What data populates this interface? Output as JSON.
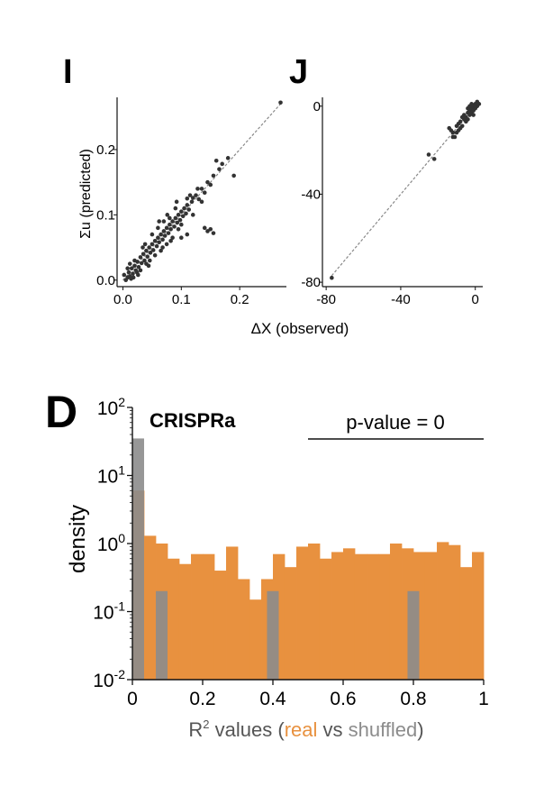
{
  "figure": {
    "panel_i_label": "I",
    "panel_j_label": "J",
    "panel_d_label": "D",
    "shared_xlabel": "ΔX (observed)",
    "panel_d_title": "CRISPRa",
    "pvalue_text": "p-value = 0",
    "xlabel_prefix": "R",
    "xlabel_sup": "2",
    "xlabel_mid": " values (",
    "xlabel_real": "real",
    "xlabel_vs": " vs ",
    "xlabel_shuffled": "shuffled",
    "xlabel_end": ")"
  },
  "colors": {
    "real": "#e8913f",
    "shuffled": "#8c8c8c",
    "points": "#333333",
    "diagonal": "#888888"
  },
  "chart_data": [
    {
      "panel": "I",
      "type": "scatter",
      "ylabel": "Σu (predicted)",
      "xlim": [
        -0.01,
        0.28
      ],
      "ylim": [
        -0.01,
        0.28
      ],
      "xticks": [
        0.0,
        0.1,
        0.2
      ],
      "xtick_labels": [
        "0.0",
        "0.1",
        "0.2"
      ],
      "yticks": [
        0.0,
        0.1,
        0.2
      ],
      "ytick_labels": [
        "0.0",
        "0.1",
        "0.2"
      ],
      "diagonal": [
        [
          0,
          0
        ],
        [
          0.27,
          0.27
        ]
      ],
      "points": [
        [
          0.005,
          0.0
        ],
        [
          0.008,
          0.004
        ],
        [
          0.01,
          0.012
        ],
        [
          0.012,
          0.006
        ],
        [
          0.015,
          0.018
        ],
        [
          0.017,
          0.01
        ],
        [
          0.02,
          0.022
        ],
        [
          0.022,
          0.015
        ],
        [
          0.025,
          0.028
        ],
        [
          0.027,
          0.02
        ],
        [
          0.03,
          0.035
        ],
        [
          0.032,
          0.026
        ],
        [
          0.035,
          0.04
        ],
        [
          0.037,
          0.03
        ],
        [
          0.04,
          0.045
        ],
        [
          0.042,
          0.036
        ],
        [
          0.045,
          0.05
        ],
        [
          0.047,
          0.042
        ],
        [
          0.05,
          0.055
        ],
        [
          0.052,
          0.046
        ],
        [
          0.055,
          0.06
        ],
        [
          0.058,
          0.052
        ],
        [
          0.06,
          0.065
        ],
        [
          0.062,
          0.058
        ],
        [
          0.065,
          0.07
        ],
        [
          0.068,
          0.062
        ],
        [
          0.07,
          0.075
        ],
        [
          0.072,
          0.068
        ],
        [
          0.075,
          0.08
        ],
        [
          0.078,
          0.072
        ],
        [
          0.08,
          0.085
        ],
        [
          0.082,
          0.078
        ],
        [
          0.085,
          0.09
        ],
        [
          0.088,
          0.082
        ],
        [
          0.09,
          0.095
        ],
        [
          0.093,
          0.088
        ],
        [
          0.095,
          0.1
        ],
        [
          0.098,
          0.092
        ],
        [
          0.1,
          0.105
        ],
        [
          0.103,
          0.098
        ],
        [
          0.105,
          0.11
        ],
        [
          0.108,
          0.102
        ],
        [
          0.11,
          0.115
        ],
        [
          0.113,
          0.108
        ],
        [
          0.118,
          0.12
        ],
        [
          0.12,
          0.126
        ],
        [
          0.125,
          0.13
        ],
        [
          0.13,
          0.124
        ],
        [
          0.135,
          0.14
        ],
        [
          0.14,
          0.134
        ],
        [
          0.145,
          0.15
        ],
        [
          0.15,
          0.146
        ],
        [
          0.155,
          0.16
        ],
        [
          0.16,
          0.183
        ],
        [
          0.165,
          0.17
        ],
        [
          0.17,
          0.178
        ],
        [
          0.18,
          0.187
        ],
        [
          0.19,
          0.16
        ],
        [
          0.002,
          0.008
        ],
        [
          0.012,
          0.025
        ],
        [
          0.018,
          0.004
        ],
        [
          0.024,
          0.012
        ],
        [
          0.03,
          0.015
        ],
        [
          0.034,
          0.05
        ],
        [
          0.04,
          0.025
        ],
        [
          0.046,
          0.03
        ],
        [
          0.05,
          0.07
        ],
        [
          0.055,
          0.038
        ],
        [
          0.06,
          0.08
        ],
        [
          0.065,
          0.045
        ],
        [
          0.07,
          0.09
        ],
        [
          0.075,
          0.055
        ],
        [
          0.08,
          0.095
        ],
        [
          0.085,
          0.065
        ],
        [
          0.09,
          0.11
        ],
        [
          0.095,
          0.078
        ],
        [
          0.1,
          0.085
        ],
        [
          0.11,
          0.125
        ],
        [
          0.12,
          0.1
        ],
        [
          0.135,
          0.12
        ],
        [
          0.14,
          0.08
        ],
        [
          0.145,
          0.075
        ],
        [
          0.15,
          0.078
        ],
        [
          0.155,
          0.072
        ],
        [
          0.11,
          0.07
        ],
        [
          0.1,
          0.065
        ],
        [
          0.008,
          0.018
        ],
        [
          0.014,
          0.002
        ],
        [
          0.02,
          0.03
        ],
        [
          0.026,
          0.008
        ],
        [
          0.038,
          0.055
        ],
        [
          0.044,
          0.022
        ],
        [
          0.062,
          0.09
        ],
        [
          0.068,
          0.05
        ],
        [
          0.076,
          0.1
        ],
        [
          0.082,
          0.06
        ],
        [
          0.092,
          0.12
        ],
        [
          0.115,
          0.13
        ],
        [
          0.128,
          0.14
        ],
        [
          0.27,
          0.272
        ]
      ]
    },
    {
      "panel": "J",
      "type": "scatter",
      "xlim": [
        -82,
        4
      ],
      "ylim": [
        -82,
        4
      ],
      "xticks": [
        -80,
        -40,
        0
      ],
      "xtick_labels": [
        "-80",
        "-40",
        "0"
      ],
      "yticks": [
        0,
        -40,
        -80
      ],
      "ytick_labels": [
        "0",
        "-40",
        "-80"
      ],
      "diagonal": [
        [
          -77,
          -77
        ],
        [
          2,
          2
        ]
      ],
      "points": [
        [
          -77,
          -78
        ],
        [
          -25,
          -22
        ],
        [
          -22,
          -24
        ],
        [
          -12,
          -12
        ],
        [
          -14,
          -10
        ],
        [
          -11,
          -14
        ],
        [
          -10,
          -9
        ],
        [
          -9,
          -11
        ],
        [
          -8,
          -7
        ],
        [
          -7,
          -9
        ],
        [
          -6,
          -6
        ],
        [
          -6,
          -4
        ],
        [
          -5,
          -7
        ],
        [
          -5,
          -5
        ],
        [
          -4,
          -3
        ],
        [
          -4,
          -6
        ],
        [
          -3,
          -4
        ],
        [
          -3,
          -2
        ],
        [
          -2,
          -3
        ],
        [
          -2,
          -1
        ],
        [
          -1,
          -2
        ],
        [
          -1,
          0
        ],
        [
          0,
          -1
        ],
        [
          0,
          1
        ],
        [
          1,
          0
        ],
        [
          1,
          2
        ],
        [
          2,
          1
        ],
        [
          -3,
          0
        ],
        [
          -2,
          1
        ],
        [
          -1,
          -4
        ],
        [
          -7,
          -5
        ],
        [
          -8,
          -10
        ],
        [
          -9,
          -8
        ],
        [
          -10,
          -12
        ],
        [
          -12,
          -14
        ],
        [
          -13,
          -11
        ],
        [
          -4,
          -1
        ],
        [
          0,
          0
        ]
      ]
    },
    {
      "panel": "D",
      "type": "bar",
      "subtitle": "histogram (log-scale density)",
      "ylabel": "density",
      "yscale": "log",
      "ylim": [
        0.01,
        100
      ],
      "xlim": [
        0,
        1
      ],
      "xticks": [
        0,
        0.2,
        0.4,
        0.6,
        0.8,
        1
      ],
      "xtick_labels": [
        "0",
        "0.2",
        "0.4",
        "0.6",
        "0.8",
        "1"
      ],
      "ytick_labels": [
        {
          "base": "10",
          "exp": "2",
          "value": 100
        },
        {
          "base": "10",
          "exp": "1",
          "value": 10
        },
        {
          "base": "10",
          "exp": "0",
          "value": 1
        },
        {
          "base": "10",
          "exp": "-1",
          "value": 0.1
        },
        {
          "base": "10",
          "exp": "-2",
          "value": 0.01
        }
      ],
      "bin_width": 0.0333,
      "series": [
        {
          "name": "real",
          "bin_starts": [
            0.0,
            0.0333,
            0.0667,
            0.1,
            0.1333,
            0.1667,
            0.2,
            0.2333,
            0.2667,
            0.3,
            0.3333,
            0.3667,
            0.4,
            0.4333,
            0.4667,
            0.5,
            0.5333,
            0.5667,
            0.6,
            0.6333,
            0.6667,
            0.7,
            0.7333,
            0.7667,
            0.8,
            0.8333,
            0.8667,
            0.9,
            0.9333,
            0.9667
          ],
          "values": [
            6.0,
            1.3,
            1.0,
            0.6,
            0.5,
            0.7,
            0.7,
            0.4,
            0.9,
            0.3,
            0.15,
            0.3,
            0.7,
            0.45,
            0.9,
            1.0,
            0.6,
            0.75,
            0.85,
            0.7,
            0.7,
            0.7,
            1.0,
            0.85,
            0.75,
            0.75,
            1.05,
            0.95,
            0.45,
            0.75
          ]
        },
        {
          "name": "shuffled",
          "bin_starts": [
            0.0,
            0.0667,
            0.3833,
            0.7833
          ],
          "bin_widths": [
            0.0333,
            0.0333,
            0.0333,
            0.0333
          ],
          "values": [
            35.0,
            0.2,
            0.2,
            0.2
          ]
        }
      ],
      "annotation": {
        "text": "p-value = 0",
        "line_from": 0.5,
        "line_to": 1.0
      }
    }
  ]
}
